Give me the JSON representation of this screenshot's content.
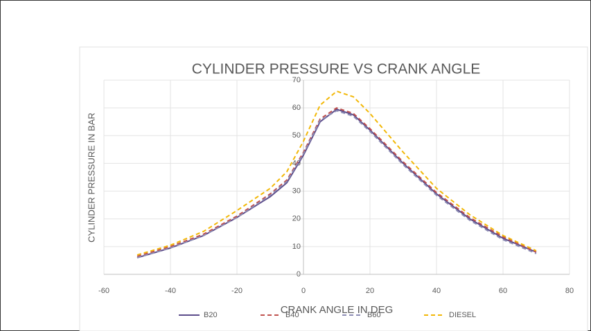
{
  "chart_data": {
    "type": "line",
    "title": "CYLINDER PRESSURE VS CRANK ANGLE",
    "x_label": "CRANK ANGLE IN DEG",
    "y_label": "CYLINDER PRESSURE IN BAR",
    "x": [
      -50,
      -40,
      -30,
      -20,
      -10,
      -5,
      0,
      5,
      10,
      15,
      20,
      30,
      40,
      50,
      60,
      70
    ],
    "series": [
      {
        "name": "B20",
        "color": "#5b4b8a",
        "dash": "solid",
        "values": [
          6,
          9.5,
          14,
          20.5,
          28,
          33,
          43,
          55,
          59.5,
          57.5,
          52,
          40,
          29,
          20,
          13,
          8
        ]
      },
      {
        "name": "B40",
        "color": "#c0504d",
        "dash": "dashed",
        "values": [
          6.5,
          10,
          14.5,
          21,
          29,
          34,
          44,
          56,
          60,
          58,
          52.5,
          40.5,
          29.5,
          20.5,
          13.5,
          8
        ]
      },
      {
        "name": "B60",
        "color": "#8c8cb4",
        "dash": "dashed",
        "values": [
          6,
          9.5,
          14,
          20.5,
          28.5,
          33.5,
          43.5,
          55.5,
          59,
          57,
          51.5,
          39.5,
          28.5,
          19.5,
          12.5,
          7.5
        ]
      },
      {
        "name": "DIESEL",
        "color": "#f2b705",
        "dash": "dashed",
        "values": [
          7,
          10.5,
          15.5,
          23,
          31,
          37,
          48,
          61,
          66,
          64,
          58,
          44,
          31,
          21.5,
          14,
          8.5
        ]
      }
    ],
    "xlim": [
      -60,
      80
    ],
    "xticks": [
      -60,
      -40,
      -20,
      0,
      20,
      40,
      60,
      80
    ],
    "ylim": [
      0,
      70
    ],
    "yticks": [
      0,
      10,
      20,
      30,
      40,
      50,
      60,
      70
    ],
    "grid": true,
    "legend": "bottom"
  }
}
